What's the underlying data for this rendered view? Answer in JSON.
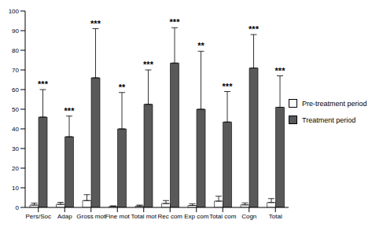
{
  "chart_data": {
    "type": "bar",
    "categories": [
      "Pers/Soc",
      "Adap",
      "Gross mot",
      "Fine mot",
      "Total mot",
      "Rec com",
      "Exp com",
      "Total com",
      "Cogn",
      "Total"
    ],
    "series": [
      {
        "name": "Pre-treatment period",
        "color": "#ffffff",
        "values": [
          1.2,
          1.6,
          3.5,
          0.5,
          0.7,
          2.0,
          1.0,
          3.2,
          1.3,
          2.5
        ],
        "errors": [
          1.0,
          1.0,
          3.0,
          0.3,
          0.5,
          1.5,
          0.8,
          2.5,
          1.0,
          2.0
        ]
      },
      {
        "name": "Treatment period",
        "color": "#595959",
        "values": [
          46,
          36,
          66,
          40,
          52.5,
          73.5,
          50,
          43.5,
          71,
          51
        ],
        "errors": [
          14,
          10.5,
          25,
          18.5,
          17.5,
          18,
          29.5,
          15.5,
          17,
          16
        ]
      }
    ],
    "annotations": [
      "***",
      "***",
      "***",
      "**",
      "***",
      "***",
      "**",
      "***",
      "***",
      "***"
    ],
    "ylim": [
      0,
      100
    ],
    "yticks": [
      0,
      10,
      20,
      30,
      40,
      50,
      60,
      70,
      80,
      90,
      100
    ],
    "grid": false,
    "legend": "right"
  }
}
